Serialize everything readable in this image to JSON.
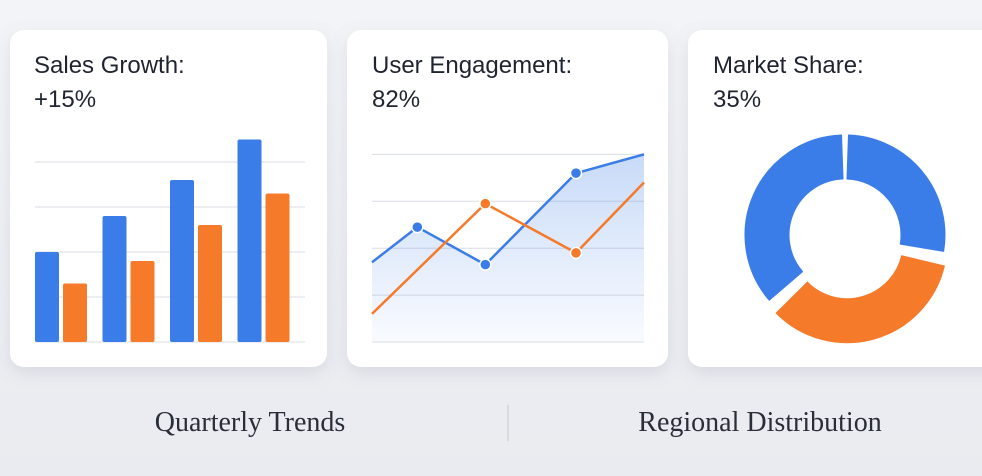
{
  "chart_data": [
    {
      "type": "bar",
      "title": "Sales Growth:",
      "subtitle": "+15%",
      "categories": [
        null,
        null,
        null,
        null
      ],
      "series": [
        {
          "color": "#3b7de8",
          "values": [
            2.0,
            2.8,
            3.6,
            4.5
          ]
        },
        {
          "color": "#f57a2a",
          "values": [
            1.3,
            1.8,
            2.6,
            3.3
          ]
        }
      ],
      "ylim": [
        0,
        5
      ],
      "yticks": [
        0,
        1,
        2,
        3,
        4
      ],
      "grid": true
    },
    {
      "type": "line",
      "title": "User Engagement:",
      "subtitle": "82%",
      "series": [
        {
          "color": "#3b7de8",
          "area": true,
          "x": [
            0,
            1,
            2.5,
            4.5,
            6
          ],
          "values": [
            1.7,
            2.45,
            1.65,
            3.6,
            4.0
          ]
        },
        {
          "color": "#f57a2a",
          "x": [
            0,
            2.5,
            4.5,
            6
          ],
          "values": [
            0.6,
            2.95,
            1.9,
            3.4
          ]
        }
      ],
      "xlim": [
        0,
        6
      ],
      "ylim": [
        0,
        4.2
      ],
      "yticks": [
        0,
        1,
        2,
        3,
        4
      ],
      "grid": true,
      "markers": true
    },
    {
      "type": "pie",
      "title": "Market Share:",
      "subtitle": "35%",
      "donut": true,
      "values": [
        28,
        35,
        37
      ],
      "colors": [
        "#3b7de8",
        "#f57a2a",
        "#3b7de8"
      ],
      "explode": [
        0,
        1,
        0
      ]
    }
  ],
  "captions": [
    "Quarterly Trends",
    "Regional Distribution"
  ]
}
